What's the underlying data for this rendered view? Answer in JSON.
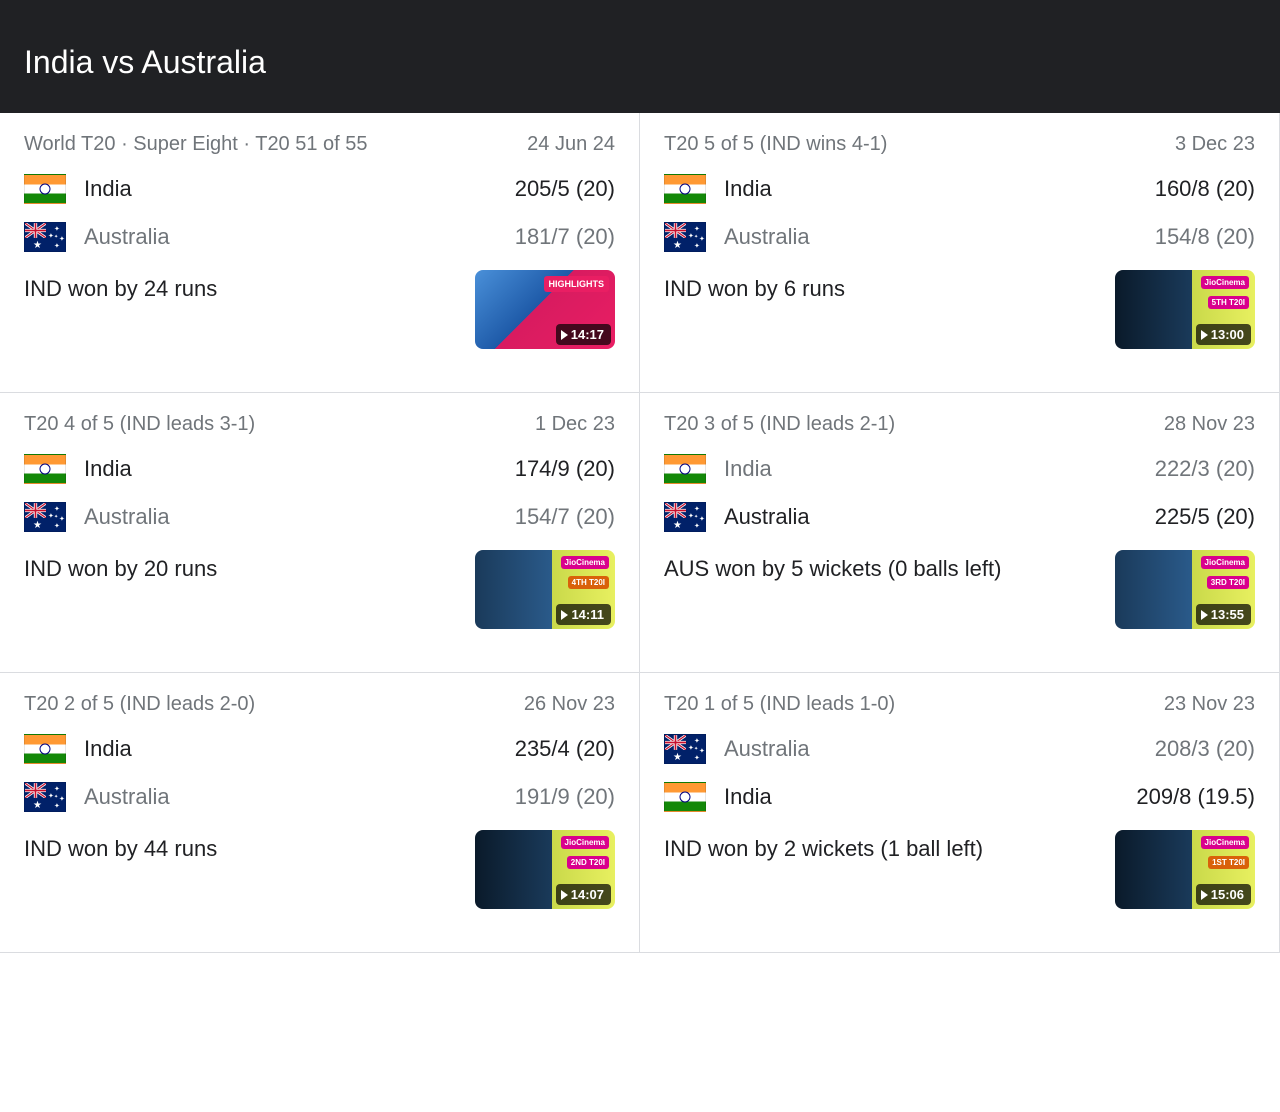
{
  "header_title": "India vs Australia",
  "matches": [
    {
      "context": "World T20 · Super Eight · T20 51 of 55",
      "date": "24 Jun 24",
      "team1": {
        "flag": "india",
        "name": "India",
        "score": "205/5 (20)",
        "winner": true
      },
      "team2": {
        "flag": "aus",
        "name": "Australia",
        "score": "181/7 (20)",
        "winner": false
      },
      "result": "IND won by 24 runs",
      "thumb": {
        "duration": "14:17",
        "jio": false,
        "highlights": "HIGHLIGHTS",
        "badge": null,
        "bg": "linear-gradient(135deg,#4a90d9 0%,#1e5aa8 45%,#d81b60 45%,#e91e63 100%)"
      }
    },
    {
      "context": "T20 5 of 5 (IND wins 4-1)",
      "date": "3 Dec 23",
      "team1": {
        "flag": "india",
        "name": "India",
        "score": "160/8 (20)",
        "winner": true
      },
      "team2": {
        "flag": "aus",
        "name": "Australia",
        "score": "154/8 (20)",
        "winner": false
      },
      "result": "IND won by 6 runs",
      "thumb": {
        "duration": "13:00",
        "jio": true,
        "highlights": null,
        "badge": {
          "text": "5TH T20I",
          "color": "#d9008d"
        },
        "bg": "linear-gradient(90deg,#0a1a2a 0%,#1a3a5a 55%,#c9d94a 55%,#e8f060 100%)"
      }
    },
    {
      "context": "T20 4 of 5 (IND leads 3-1)",
      "date": "1 Dec 23",
      "team1": {
        "flag": "india",
        "name": "India",
        "score": "174/9 (20)",
        "winner": true
      },
      "team2": {
        "flag": "aus",
        "name": "Australia",
        "score": "154/7 (20)",
        "winner": false
      },
      "result": "IND won by 20 runs",
      "thumb": {
        "duration": "14:11",
        "jio": true,
        "highlights": null,
        "badge": {
          "text": "4TH T20I",
          "color": "#d9610a"
        },
        "bg": "linear-gradient(90deg,#1a3a5a 0%,#2a5a8a 55%,#c9d94a 55%,#e8f060 100%)"
      }
    },
    {
      "context": "T20 3 of 5 (IND leads 2-1)",
      "date": "28 Nov 23",
      "team1": {
        "flag": "india",
        "name": "India",
        "score": "222/3 (20)",
        "winner": false
      },
      "team2": {
        "flag": "aus",
        "name": "Australia",
        "score": "225/5 (20)",
        "winner": true
      },
      "result": "AUS won by 5 wickets (0 balls left)",
      "thumb": {
        "duration": "13:55",
        "jio": true,
        "highlights": null,
        "badge": {
          "text": "3RD T20I",
          "color": "#d9008d"
        },
        "bg": "linear-gradient(90deg,#1a3a5a 0%,#2a5a8a 55%,#c9d94a 55%,#e8f060 100%)"
      }
    },
    {
      "context": "T20 2 of 5 (IND leads 2-0)",
      "date": "26 Nov 23",
      "team1": {
        "flag": "india",
        "name": "India",
        "score": "235/4 (20)",
        "winner": true
      },
      "team2": {
        "flag": "aus",
        "name": "Australia",
        "score": "191/9 (20)",
        "winner": false
      },
      "result": "IND won by 44 runs",
      "thumb": {
        "duration": "14:07",
        "jio": true,
        "highlights": null,
        "badge": {
          "text": "2ND T20I",
          "color": "#d9008d"
        },
        "bg": "linear-gradient(90deg,#0a1a2a 0%,#1a3a5a 55%,#c9d94a 55%,#e8f060 100%)"
      }
    },
    {
      "context": "T20 1 of 5 (IND leads 1-0)",
      "date": "23 Nov 23",
      "team1": {
        "flag": "aus",
        "name": "Australia",
        "score": "208/3 (20)",
        "winner": false
      },
      "team2": {
        "flag": "india",
        "name": "India",
        "score": "209/8 (19.5)",
        "winner": true
      },
      "result": "IND won by 2 wickets (1 ball left)",
      "thumb": {
        "duration": "15:06",
        "jio": true,
        "highlights": null,
        "badge": {
          "text": "1ST T20I",
          "color": "#d9610a"
        },
        "bg": "linear-gradient(90deg,#0a1a2a 0%,#1a3a5a 55%,#c9d94a 55%,#e8f060 100%)"
      }
    }
  ]
}
